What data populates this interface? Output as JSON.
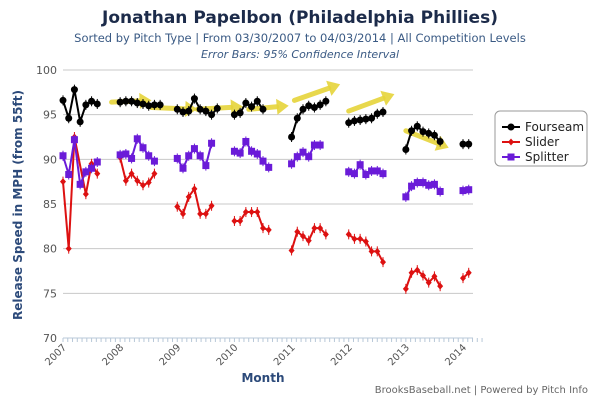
{
  "header": {
    "title": "Jonathan Papelbon (Philadelphia Phillies)",
    "subtitle": "Sorted by Pitch Type | From 03/30/2007 to 04/03/2014 | All Competition Levels",
    "note": "Error Bars: 95% Confidence Interval"
  },
  "footer": "BrooksBaseball.net | Powered by Pitch Info",
  "chart_data": {
    "type": "line",
    "title": "Jonathan Papelbon (Philadelphia Phillies)",
    "xlabel": "Month",
    "ylabel": "Release Speed in MPH (from 55ft)",
    "ylim": [
      70,
      100
    ],
    "xlim": [
      2007.0,
      2014.3
    ],
    "yticks": [
      70,
      75,
      80,
      85,
      90,
      95,
      100
    ],
    "xticks": [
      "2007",
      "2008",
      "2009",
      "2010",
      "2011",
      "2012",
      "2013",
      "2014"
    ],
    "grid": true,
    "legend_position": "right",
    "series": [
      {
        "name": "Fourseam",
        "color": "#000000",
        "marker": "circle",
        "segments": [
          [
            [
              2007.0,
              96.6
            ],
            [
              2007.1,
              94.6
            ],
            [
              2007.2,
              97.8
            ],
            [
              2007.3,
              94.2
            ],
            [
              2007.4,
              96.1
            ],
            [
              2007.5,
              96.5
            ],
            [
              2007.6,
              96.2
            ]
          ],
          [
            [
              2008.0,
              96.4
            ],
            [
              2008.1,
              96.5
            ],
            [
              2008.2,
              96.5
            ],
            [
              2008.3,
              96.3
            ],
            [
              2008.4,
              96.2
            ],
            [
              2008.5,
              96.0
            ],
            [
              2008.6,
              96.1
            ],
            [
              2008.7,
              96.1
            ]
          ],
          [
            [
              2009.0,
              95.6
            ],
            [
              2009.1,
              95.3
            ],
            [
              2009.2,
              95.4
            ],
            [
              2009.3,
              96.8
            ],
            [
              2009.4,
              95.6
            ],
            [
              2009.5,
              95.4
            ],
            [
              2009.6,
              95.0
            ],
            [
              2009.7,
              95.7
            ]
          ],
          [
            [
              2010.0,
              95.0
            ],
            [
              2010.1,
              95.2
            ],
            [
              2010.2,
              96.3
            ],
            [
              2010.3,
              95.9
            ],
            [
              2010.4,
              96.5
            ],
            [
              2010.5,
              95.6
            ]
          ],
          [
            [
              2011.0,
              92.5
            ],
            [
              2011.1,
              94.6
            ],
            [
              2011.2,
              95.6
            ],
            [
              2011.3,
              96.0
            ],
            [
              2011.4,
              95.8
            ],
            [
              2011.5,
              96.1
            ],
            [
              2011.6,
              96.5
            ]
          ],
          [
            [
              2012.0,
              94.1
            ],
            [
              2012.1,
              94.3
            ],
            [
              2012.2,
              94.4
            ],
            [
              2012.3,
              94.5
            ],
            [
              2012.4,
              94.6
            ],
            [
              2012.5,
              95.1
            ],
            [
              2012.6,
              95.3
            ]
          ],
          [
            [
              2013.0,
              91.1
            ],
            [
              2013.1,
              93.2
            ],
            [
              2013.2,
              93.7
            ],
            [
              2013.3,
              93.1
            ],
            [
              2013.4,
              92.9
            ],
            [
              2013.5,
              92.7
            ],
            [
              2013.6,
              92.0
            ]
          ],
          [
            [
              2014.0,
              91.7
            ],
            [
              2014.1,
              91.7
            ]
          ]
        ]
      },
      {
        "name": "Slider",
        "color": "#dd1111",
        "marker": "diamond",
        "segments": [
          [
            [
              2007.0,
              87.5
            ],
            [
              2007.1,
              80.0
            ],
            [
              2007.2,
              92.5
            ],
            [
              2007.4,
              86.1
            ],
            [
              2007.5,
              89.5
            ],
            [
              2007.6,
              88.4
            ]
          ],
          [
            [
              2008.0,
              90.2
            ],
            [
              2008.1,
              87.6
            ],
            [
              2008.2,
              88.4
            ],
            [
              2008.3,
              87.6
            ],
            [
              2008.4,
              87.1
            ],
            [
              2008.5,
              87.4
            ],
            [
              2008.6,
              88.4
            ]
          ],
          [
            [
              2009.0,
              84.7
            ],
            [
              2009.1,
              83.9
            ],
            [
              2009.2,
              85.8
            ],
            [
              2009.3,
              86.7
            ],
            [
              2009.4,
              83.9
            ],
            [
              2009.5,
              83.9
            ],
            [
              2009.6,
              84.8
            ]
          ],
          [
            [
              2010.0,
              83.1
            ],
            [
              2010.1,
              83.1
            ],
            [
              2010.2,
              84.1
            ],
            [
              2010.3,
              84.1
            ],
            [
              2010.4,
              84.1
            ],
            [
              2010.5,
              82.3
            ],
            [
              2010.6,
              82.1
            ]
          ],
          [
            [
              2011.0,
              79.8
            ],
            [
              2011.1,
              81.9
            ],
            [
              2011.2,
              81.4
            ],
            [
              2011.3,
              80.9
            ],
            [
              2011.4,
              82.3
            ],
            [
              2011.5,
              82.3
            ],
            [
              2011.6,
              81.6
            ]
          ],
          [
            [
              2012.0,
              81.6
            ],
            [
              2012.1,
              81.1
            ],
            [
              2012.2,
              81.1
            ],
            [
              2012.3,
              80.8
            ],
            [
              2012.4,
              79.7
            ],
            [
              2012.5,
              79.7
            ],
            [
              2012.6,
              78.5
            ]
          ],
          [
            [
              2013.0,
              75.5
            ],
            [
              2013.1,
              77.3
            ],
            [
              2013.2,
              77.6
            ],
            [
              2013.3,
              77.0
            ],
            [
              2013.4,
              76.2
            ],
            [
              2013.5,
              76.9
            ],
            [
              2013.6,
              75.8
            ]
          ],
          [
            [
              2014.0,
              76.7
            ],
            [
              2014.1,
              77.3
            ]
          ]
        ]
      },
      {
        "name": "Splitter",
        "color": "#6a1bd8",
        "marker": "square",
        "segments": [
          [
            [
              2007.0,
              90.4
            ],
            [
              2007.1,
              88.3
            ],
            [
              2007.2,
              92.2
            ],
            [
              2007.3,
              87.2
            ],
            [
              2007.4,
              88.6
            ],
            [
              2007.5,
              89.0
            ],
            [
              2007.6,
              89.7
            ]
          ],
          [
            [
              2008.0,
              90.5
            ],
            [
              2008.1,
              90.6
            ],
            [
              2008.2,
              90.1
            ],
            [
              2008.3,
              92.3
            ],
            [
              2008.4,
              91.3
            ],
            [
              2008.5,
              90.4
            ],
            [
              2008.6,
              89.8
            ]
          ],
          [
            [
              2009.0,
              90.1
            ],
            [
              2009.1,
              89.0
            ],
            [
              2009.2,
              90.4
            ],
            [
              2009.3,
              91.2
            ],
            [
              2009.4,
              90.4
            ],
            [
              2009.5,
              89.3
            ],
            [
              2009.6,
              91.8
            ]
          ],
          [
            [
              2010.0,
              90.9
            ],
            [
              2010.1,
              90.7
            ],
            [
              2010.2,
              92.0
            ],
            [
              2010.3,
              90.9
            ],
            [
              2010.4,
              90.6
            ],
            [
              2010.5,
              89.8
            ],
            [
              2010.6,
              89.1
            ]
          ],
          [
            [
              2011.0,
              89.5
            ],
            [
              2011.1,
              90.3
            ],
            [
              2011.2,
              90.8
            ],
            [
              2011.3,
              90.3
            ],
            [
              2011.4,
              91.6
            ],
            [
              2011.5,
              91.6
            ]
          ],
          [
            [
              2012.0,
              88.6
            ],
            [
              2012.1,
              88.4
            ],
            [
              2012.2,
              89.4
            ],
            [
              2012.3,
              88.3
            ],
            [
              2012.4,
              88.7
            ],
            [
              2012.5,
              88.7
            ],
            [
              2012.6,
              88.4
            ]
          ],
          [
            [
              2013.0,
              85.8
            ],
            [
              2013.1,
              87.0
            ],
            [
              2013.2,
              87.4
            ],
            [
              2013.3,
              87.4
            ],
            [
              2013.4,
              87.1
            ],
            [
              2013.5,
              87.2
            ],
            [
              2013.6,
              86.4
            ]
          ],
          [
            [
              2014.0,
              86.5
            ],
            [
              2014.1,
              86.6
            ]
          ]
        ]
      }
    ],
    "annotations": [
      {
        "type": "arrow",
        "color": "#e6d43a",
        "from": [
          2007.85,
          96.4
        ],
        "to": [
          2008.55,
          96.6
        ]
      },
      {
        "type": "arrow",
        "color": "#e6d43a",
        "from": [
          2008.55,
          95.8
        ],
        "to": [
          2009.35,
          95.6
        ]
      },
      {
        "type": "arrow",
        "color": "#e6d43a",
        "from": [
          2009.35,
          95.6
        ],
        "to": [
          2010.15,
          95.9
        ]
      },
      {
        "type": "arrow",
        "color": "#e6d43a",
        "from": [
          2010.25,
          95.6
        ],
        "to": [
          2010.95,
          96.0
        ]
      },
      {
        "type": "arrow",
        "color": "#e6d43a",
        "from": [
          2011.05,
          96.6
        ],
        "to": [
          2011.85,
          98.4
        ]
      },
      {
        "type": "arrow",
        "color": "#e6d43a",
        "from": [
          2012.0,
          95.4
        ],
        "to": [
          2012.8,
          97.3
        ]
      },
      {
        "type": "arrow",
        "color": "#e6d43a",
        "from": [
          2013.0,
          93.2
        ],
        "to": [
          2013.75,
          91.3
        ]
      }
    ]
  },
  "legend": {
    "items": [
      "Fourseam",
      "Slider",
      "Splitter"
    ]
  }
}
